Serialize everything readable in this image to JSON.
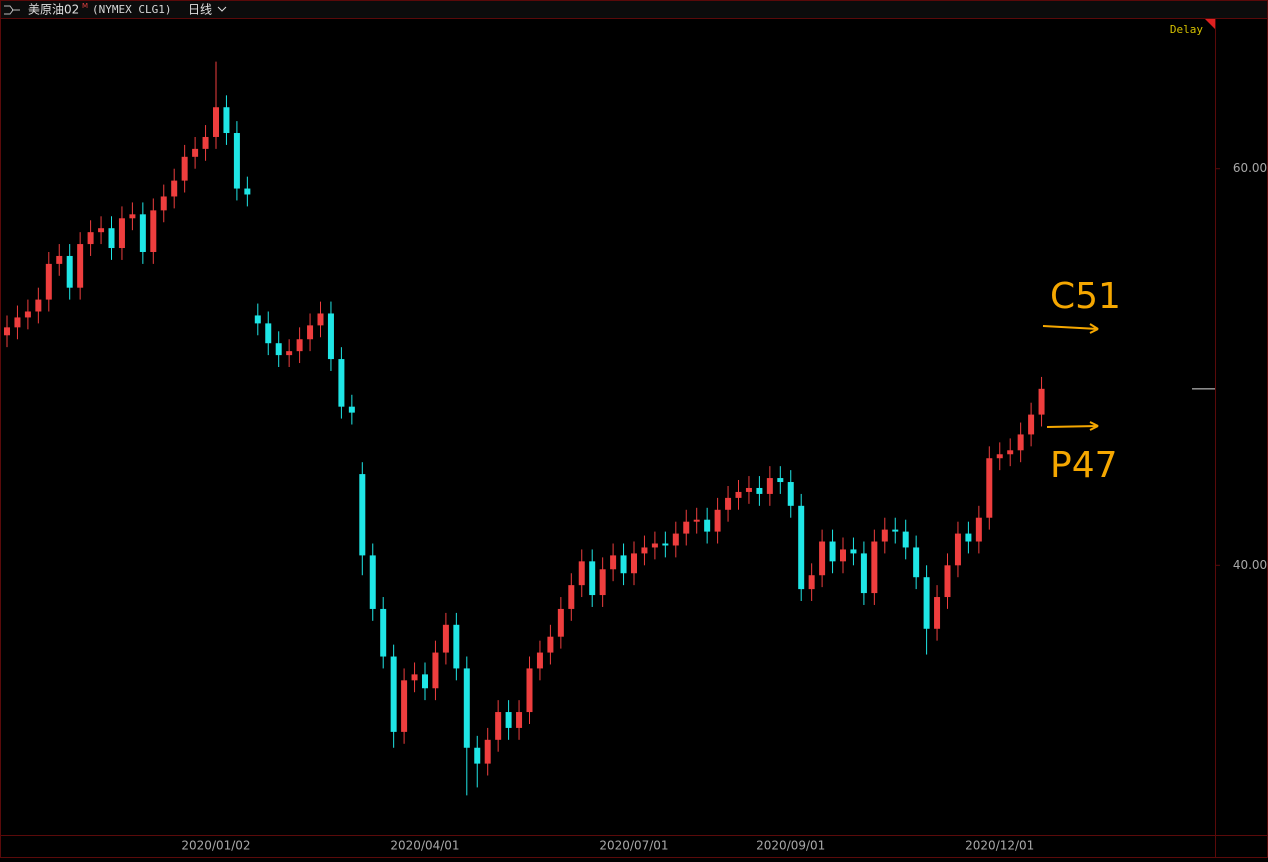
{
  "header": {
    "name": "美原油02",
    "mark": "M",
    "code": "(NYMEX CLG1)",
    "period": "日线"
  },
  "chart_data": {
    "type": "candlestick",
    "delay_label": "Delay",
    "up_color": "#ee3e3e",
    "down_color": "#1fe6e6",
    "categories": [
      null,
      null,
      null,
      null,
      null,
      null,
      null,
      null,
      null,
      null,
      null,
      null,
      null,
      null,
      null,
      null,
      null,
      null,
      null,
      null,
      "2020/01/02",
      null,
      null,
      null,
      null,
      null,
      null,
      null,
      null,
      null,
      null,
      null,
      null,
      null,
      null,
      null,
      null,
      null,
      null,
      null,
      "2020/04/01",
      null,
      null,
      null,
      null,
      null,
      null,
      null,
      null,
      null,
      null,
      null,
      null,
      null,
      null,
      null,
      null,
      null,
      null,
      null,
      "2020/07/01",
      null,
      null,
      null,
      null,
      null,
      null,
      null,
      null,
      null,
      null,
      null,
      null,
      null,
      null,
      "2020/09/01",
      null,
      null,
      null,
      null,
      null,
      null,
      null,
      null,
      null,
      null,
      null,
      null,
      null,
      null,
      null,
      null,
      null,
      null,
      null,
      "2020/12/01",
      null,
      null,
      null,
      null
    ],
    "open": [
      51.6,
      52.0,
      52.5,
      52.8,
      53.4,
      55.2,
      55.6,
      54.0,
      56.2,
      56.8,
      57.0,
      56.0,
      57.5,
      57.7,
      55.8,
      57.9,
      58.6,
      59.4,
      60.6,
      61.0,
      61.6,
      63.1,
      61.8,
      59.0,
      52.6,
      52.2,
      51.2,
      50.6,
      50.8,
      51.4,
      52.1,
      52.7,
      50.4,
      48.0,
      44.6,
      40.5,
      37.8,
      35.4,
      31.6,
      34.2,
      34.5,
      33.8,
      35.6,
      37.0,
      34.8,
      30.8,
      30.0,
      31.2,
      32.6,
      31.8,
      32.6,
      34.8,
      35.6,
      36.4,
      37.8,
      39.0,
      40.2,
      38.5,
      39.8,
      40.5,
      39.6,
      40.6,
      40.9,
      41.1,
      41.0,
      41.6,
      42.2,
      42.3,
      41.7,
      42.8,
      43.4,
      43.7,
      43.9,
      43.6,
      44.4,
      44.2,
      43.0,
      38.8,
      39.5,
      41.2,
      40.2,
      40.8,
      40.6,
      38.6,
      41.2,
      41.8,
      41.7,
      40.9,
      39.4,
      36.8,
      38.4,
      40.0,
      41.6,
      41.2,
      42.4,
      45.4,
      45.6,
      45.8,
      46.6,
      47.6
    ],
    "high": [
      52.6,
      53.1,
      53.4,
      54.0,
      55.8,
      56.2,
      56.2,
      56.8,
      57.4,
      57.6,
      57.6,
      58.1,
      58.3,
      58.3,
      58.5,
      59.2,
      60.0,
      61.2,
      61.6,
      62.2,
      65.4,
      63.7,
      62.4,
      59.6,
      53.2,
      52.8,
      51.8,
      51.4,
      52.0,
      52.7,
      53.3,
      53.3,
      51.0,
      48.6,
      45.2,
      41.1,
      38.4,
      36.0,
      34.8,
      35.1,
      35.1,
      36.2,
      37.6,
      37.6,
      35.4,
      31.4,
      31.8,
      33.2,
      33.2,
      33.2,
      35.4,
      36.2,
      37.0,
      38.4,
      39.6,
      40.8,
      40.8,
      40.4,
      41.1,
      41.1,
      41.2,
      41.5,
      41.7,
      41.7,
      42.2,
      42.8,
      42.9,
      42.9,
      43.4,
      44.0,
      44.3,
      44.5,
      44.5,
      45.0,
      45.0,
      44.8,
      43.6,
      40.1,
      41.8,
      41.8,
      41.4,
      41.4,
      41.2,
      41.8,
      42.4,
      42.4,
      42.3,
      41.5,
      40.0,
      39.0,
      40.6,
      42.2,
      42.2,
      43.0,
      46.0,
      46.2,
      46.4,
      47.2,
      48.2,
      49.5
    ],
    "low": [
      51.0,
      51.4,
      51.9,
      52.2,
      52.8,
      54.6,
      53.4,
      53.4,
      55.6,
      56.2,
      55.4,
      55.4,
      56.9,
      55.2,
      55.2,
      57.3,
      58.0,
      58.8,
      60.0,
      60.4,
      61.0,
      61.2,
      58.4,
      58.1,
      51.6,
      50.6,
      50.0,
      50.0,
      50.2,
      50.8,
      51.5,
      49.8,
      47.4,
      47.1,
      39.5,
      37.2,
      34.8,
      30.8,
      31.0,
      33.6,
      33.2,
      33.2,
      35.0,
      34.2,
      28.4,
      28.8,
      29.4,
      30.6,
      31.2,
      31.2,
      32.0,
      34.2,
      35.0,
      35.8,
      37.2,
      38.4,
      37.9,
      37.9,
      39.2,
      39.0,
      39.0,
      40.0,
      40.3,
      40.4,
      40.4,
      41.0,
      41.6,
      41.1,
      41.1,
      42.2,
      42.8,
      43.1,
      43.0,
      43.0,
      43.6,
      42.4,
      38.2,
      38.2,
      38.9,
      39.6,
      39.6,
      40.0,
      38.0,
      38.0,
      40.6,
      41.1,
      40.3,
      38.8,
      35.5,
      36.2,
      37.8,
      39.4,
      40.6,
      40.6,
      41.8,
      44.8,
      45.0,
      45.2,
      46.0,
      47.0
    ],
    "close": [
      52.0,
      52.5,
      52.8,
      53.4,
      55.2,
      55.6,
      54.0,
      56.2,
      56.8,
      57.0,
      56.0,
      57.5,
      57.7,
      55.8,
      57.9,
      58.6,
      59.4,
      60.6,
      61.0,
      61.6,
      63.1,
      61.8,
      59.0,
      58.7,
      52.2,
      51.2,
      50.6,
      50.8,
      51.4,
      52.1,
      52.7,
      50.4,
      48.0,
      47.7,
      40.5,
      37.8,
      35.4,
      31.6,
      34.2,
      34.5,
      33.8,
      35.6,
      37.0,
      34.8,
      30.8,
      30.0,
      31.2,
      32.6,
      31.8,
      32.6,
      34.8,
      35.6,
      36.4,
      37.8,
      39.0,
      40.2,
      38.5,
      39.8,
      40.5,
      39.6,
      40.6,
      40.9,
      41.1,
      41.0,
      41.6,
      42.2,
      42.3,
      41.7,
      42.8,
      43.4,
      43.7,
      43.9,
      43.6,
      44.4,
      44.2,
      43.0,
      38.8,
      39.5,
      41.2,
      40.2,
      40.8,
      40.6,
      38.6,
      41.2,
      41.8,
      41.7,
      40.9,
      39.4,
      36.8,
      38.4,
      40.0,
      41.6,
      41.2,
      42.4,
      45.4,
      45.6,
      45.8,
      46.6,
      47.6,
      48.9
    ],
    "ylim": [
      26.4,
      67.6
    ],
    "yticks": [
      {
        "value": 40,
        "label": "40.00"
      },
      {
        "value": 60,
        "label": "60.00"
      }
    ],
    "annotations": [
      "C51",
      "P47"
    ],
    "annotation_color": "#f5a700"
  }
}
